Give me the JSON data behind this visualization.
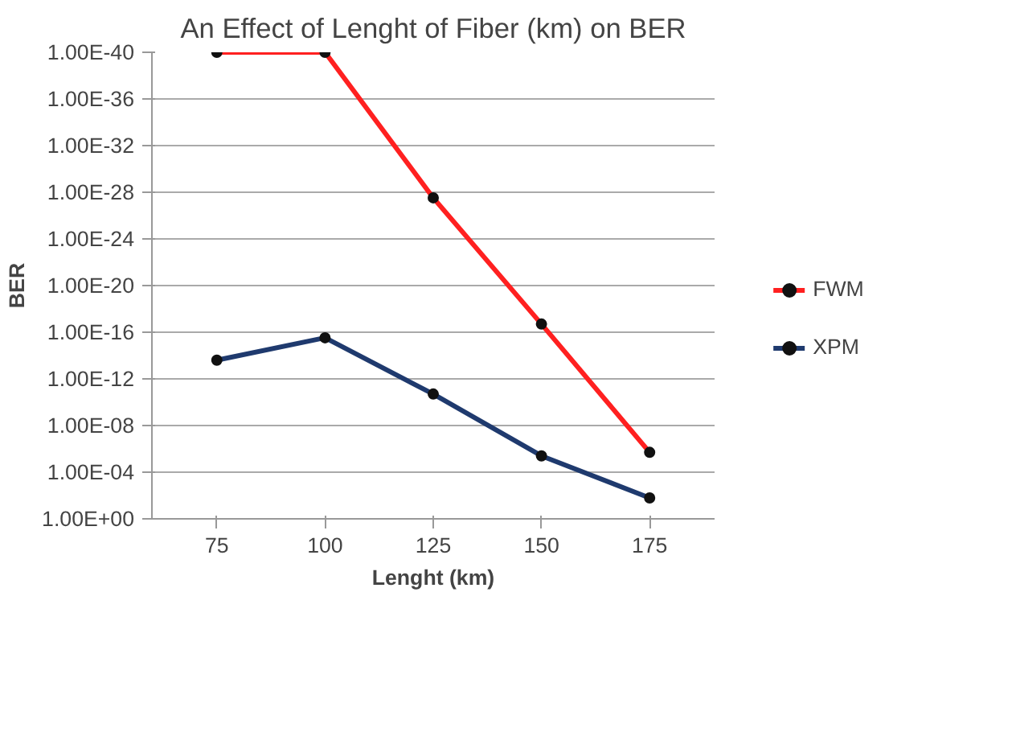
{
  "chart_data": {
    "type": "line",
    "title": "An Effect of Lenght of Fiber (km) on BER",
    "xlabel": "Lenght (km)",
    "ylabel": "BER",
    "categories": [
      "75",
      "100",
      "125",
      "150",
      "175"
    ],
    "series": [
      {
        "name": "FWM",
        "color": "#ff2020",
        "values": [
          1e-40,
          1e-40,
          3e-28,
          2e-17,
          2e-06
        ]
      },
      {
        "name": "XPM",
        "color": "#1f3a6e",
        "values": [
          2.5e-14,
          3e-16,
          2e-11,
          4e-06,
          0.016
        ]
      }
    ],
    "log": true,
    "ylim": [
      1,
      1e-40
    ],
    "yticks": [
      {
        "value": 1e-40,
        "label": "1.00E-40"
      },
      {
        "value": 1e-36,
        "label": "1.00E-36"
      },
      {
        "value": 1e-32,
        "label": "1.00E-32"
      },
      {
        "value": 1e-28,
        "label": "1.00E-28"
      },
      {
        "value": 1e-24,
        "label": "1.00E-24"
      },
      {
        "value": 1e-20,
        "label": "1.00E-20"
      },
      {
        "value": 1e-16,
        "label": "1.00E-16"
      },
      {
        "value": 1e-12,
        "label": "1.00E-12"
      },
      {
        "value": 1e-08,
        "label": "1.00E-08"
      },
      {
        "value": 0.0001,
        "label": "1.00E-04"
      },
      {
        "value": 1,
        "label": "1.00E+00"
      }
    ],
    "grid": "y",
    "legend": "right",
    "marker": "circle",
    "line_style": "solid"
  }
}
